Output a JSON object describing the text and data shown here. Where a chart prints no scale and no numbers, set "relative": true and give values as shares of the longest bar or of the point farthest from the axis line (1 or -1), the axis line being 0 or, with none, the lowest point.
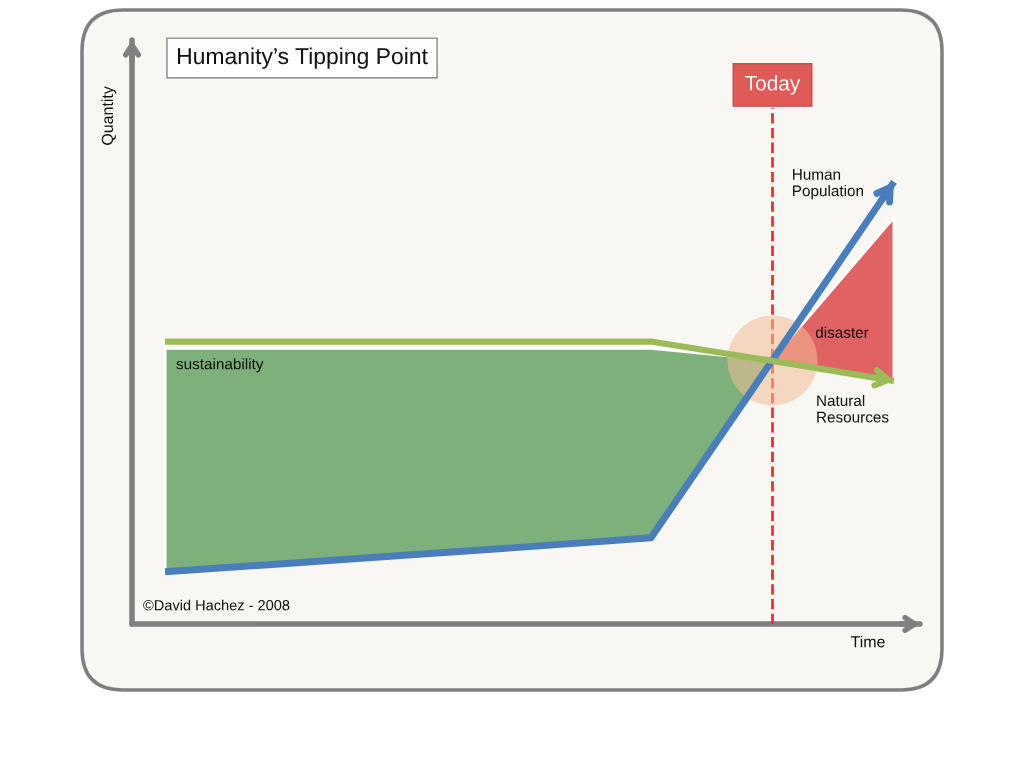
{
  "chart_data": {
    "type": "line",
    "title": "Humanity’s Tipping Point",
    "xlabel": "Time",
    "ylabel": "Quantity",
    "relative": true,
    "categories": [
      null,
      null,
      null,
      null,
      null,
      null,
      null
    ],
    "series": [
      {
        "name": "Human Population",
        "color": "#4a7ebb",
        "values": [
          0.118,
          0.137,
          0.156,
          0.175,
          0.195,
          0.597,
          1.0
        ]
      },
      {
        "name": "Natural Resources",
        "color": "#9bbb59",
        "values": [
          0.639,
          0.639,
          0.639,
          0.639,
          0.639,
          0.595,
          0.55
        ]
      },
      {
        "name": "sustainability",
        "type": "area",
        "color": "#7eb07b",
        "values": [
          0.624,
          0.624,
          0.624,
          0.624,
          0.624,
          0.597,
          null
        ]
      },
      {
        "name": "disaster",
        "type": "area",
        "color": "#e06262",
        "values": [
          null,
          null,
          null,
          null,
          null,
          0.6,
          0.92
        ]
      }
    ],
    "annotations": [
      "©David Hachez - 2008",
      "Today"
    ]
  }
}
